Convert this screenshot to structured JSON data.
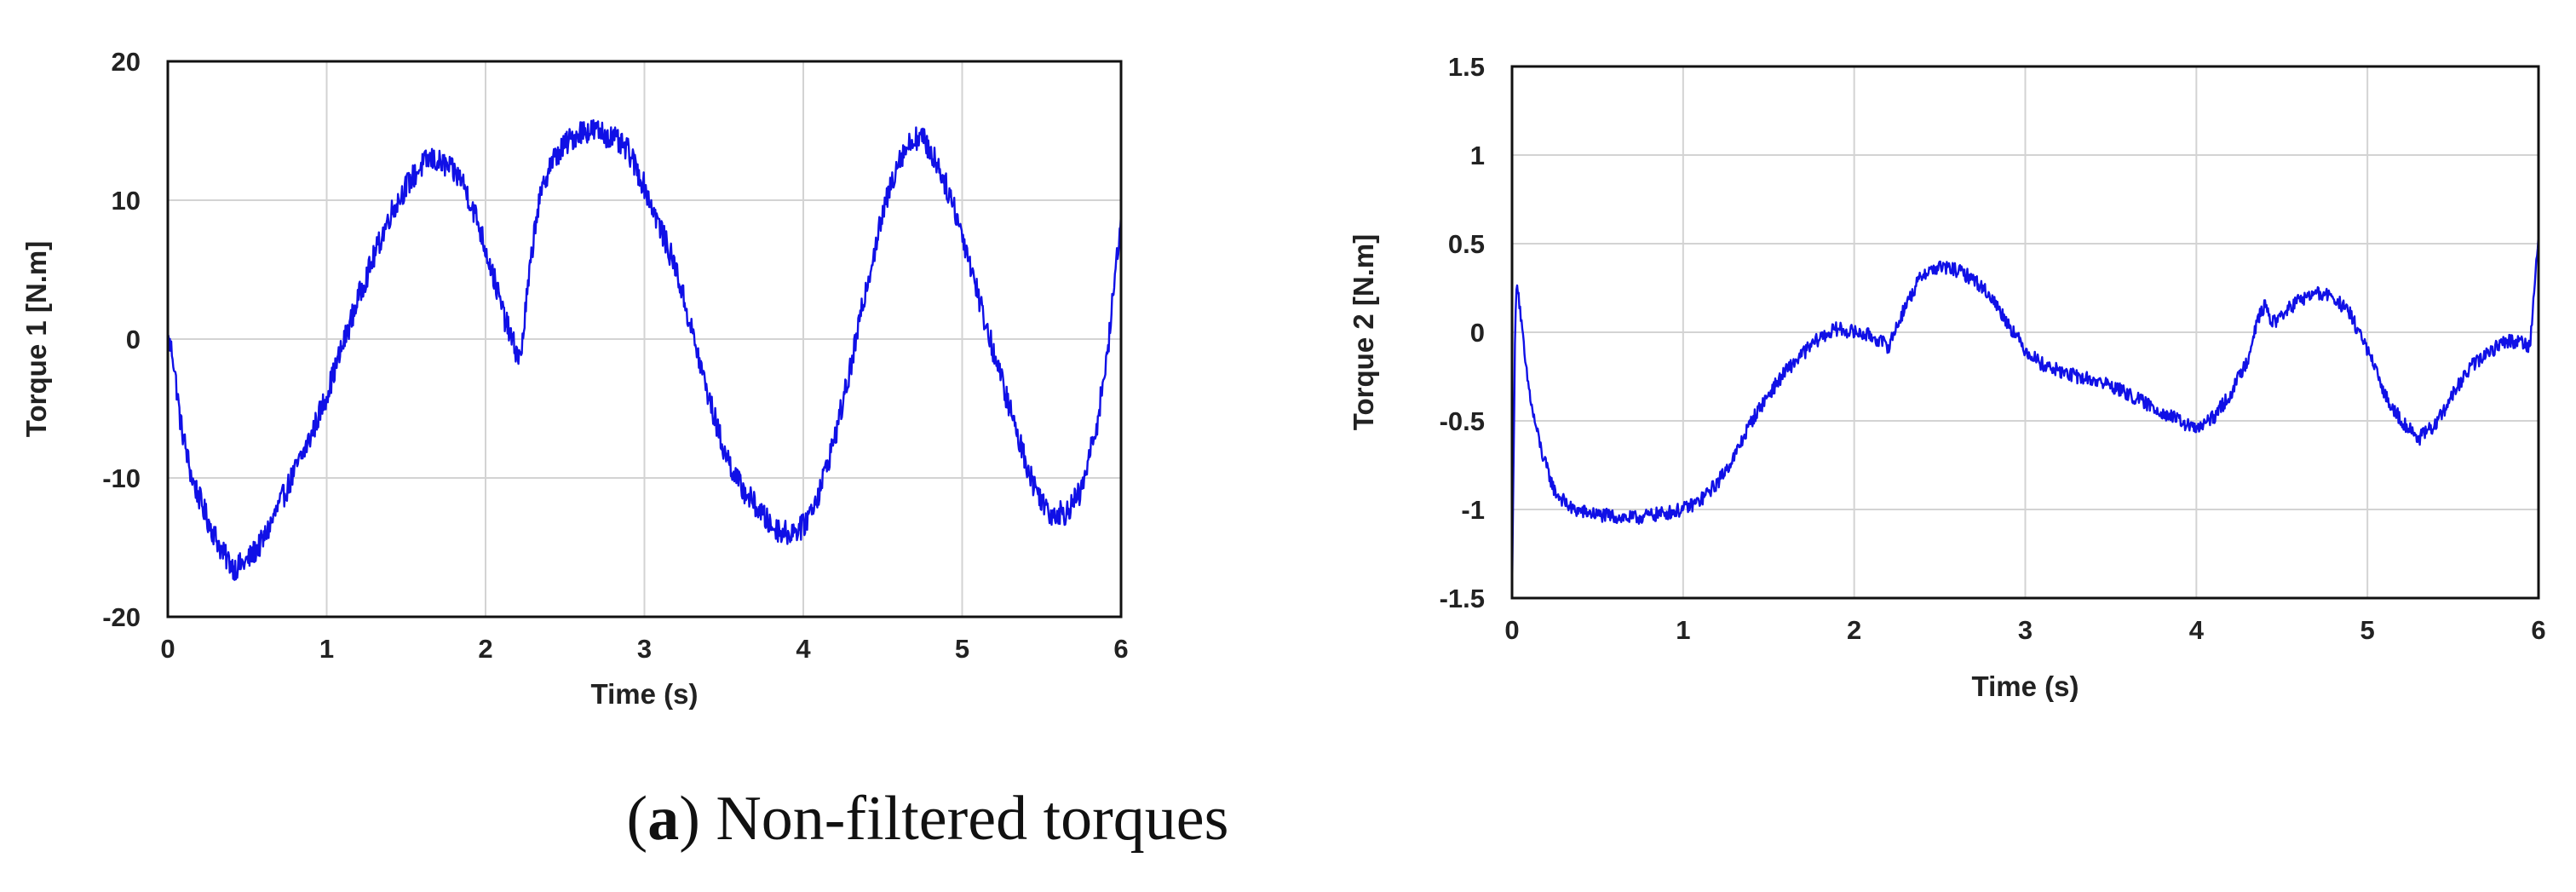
{
  "caption": {
    "open_paren": "(",
    "letter": "a",
    "rest": ") Non-filtered torques"
  },
  "colors": {
    "series": "#1010e6"
  },
  "chart_data": [
    {
      "type": "line",
      "title": "",
      "xlabel": "Time (s)",
      "ylabel": "Torque 1 [N.m]",
      "xlim": [
        0,
        6
      ],
      "ylim": [
        -20,
        20
      ],
      "xticks": [
        "0",
        "1",
        "2",
        "3",
        "4",
        "5",
        "6"
      ],
      "yticks": [
        "-20",
        "-10",
        "0",
        "10",
        "20"
      ],
      "grid": true,
      "noise_amplitude": 0.9,
      "series": [
        {
          "x": [
            0,
            0.03,
            0.08,
            0.15,
            0.25,
            0.35,
            0.42,
            0.5,
            0.6,
            0.7,
            0.8,
            0.9,
            1.0,
            1.1,
            1.2,
            1.3,
            1.4,
            1.5,
            1.6,
            1.65,
            1.75,
            1.85,
            1.95,
            2.05,
            2.12,
            2.18,
            2.22,
            2.26,
            2.32,
            2.4,
            2.5,
            2.6,
            2.7,
            2.8,
            2.9,
            3.0,
            3.1,
            3.2,
            3.3,
            3.4,
            3.5,
            3.6,
            3.7,
            3.8,
            3.9,
            4.0,
            4.1,
            4.2,
            4.3,
            4.4,
            4.5,
            4.6,
            4.7,
            4.75,
            4.85,
            4.95,
            5.05,
            5.15,
            5.25,
            5.35,
            5.45,
            5.55,
            5.65,
            5.75,
            5.85,
            5.92,
            6.0
          ],
          "y": [
            0,
            -1,
            -6,
            -10,
            -13,
            -15.5,
            -16.5,
            -16,
            -14.5,
            -12,
            -9.5,
            -7,
            -4,
            -0.5,
            3,
            6,
            9,
            11,
            12.5,
            13,
            12.5,
            11.5,
            8.5,
            4.5,
            1.5,
            -0.5,
            -1.5,
            3,
            9,
            12.5,
            14,
            15,
            15,
            14.5,
            13.5,
            11,
            8,
            5,
            0.5,
            -4,
            -8,
            -10.5,
            -12,
            -13.5,
            -14,
            -13.5,
            -11,
            -7,
            -2,
            4,
            9,
            13,
            14.5,
            14.5,
            12.5,
            9.5,
            5.5,
            1,
            -3,
            -7,
            -10.5,
            -12.5,
            -12.5,
            -11,
            -6,
            -0.5,
            9
          ]
        }
      ]
    },
    {
      "type": "line",
      "title": "",
      "xlabel": "Time (s)",
      "ylabel": "Torque 2 [N.m]",
      "xlim": [
        0,
        6
      ],
      "ylim": [
        -1.5,
        1.5
      ],
      "xticks": [
        "0",
        "1",
        "2",
        "3",
        "4",
        "5",
        "6"
      ],
      "yticks": [
        "-1.5",
        "-1",
        "-0.5",
        "0",
        "0.5",
        "1",
        "1.5"
      ],
      "grid": true,
      "noise_amplitude": 0.04,
      "series": [
        {
          "x": [
            0,
            0.01,
            0.02,
            0.03,
            0.05,
            0.08,
            0.12,
            0.18,
            0.25,
            0.35,
            0.5,
            0.7,
            0.9,
            1.0,
            1.1,
            1.2,
            1.3,
            1.4,
            1.5,
            1.6,
            1.7,
            1.8,
            1.9,
            2.0,
            2.1,
            2.2,
            2.3,
            2.4,
            2.5,
            2.6,
            2.7,
            2.8,
            2.9,
            3.0,
            3.1,
            3.2,
            3.3,
            3.4,
            3.5,
            3.6,
            3.7,
            3.8,
            3.9,
            4.0,
            4.1,
            4.2,
            4.3,
            4.35,
            4.4,
            4.45,
            4.5,
            4.6,
            4.7,
            4.8,
            4.9,
            5.0,
            5.1,
            5.2,
            5.3,
            5.4,
            5.5,
            5.6,
            5.7,
            5.8,
            5.9,
            5.95,
            6.0
          ],
          "y": [
            -1.5,
            -0.6,
            0.1,
            0.3,
            0.1,
            -0.2,
            -0.45,
            -0.7,
            -0.9,
            -1.0,
            -1.03,
            -1.05,
            -1.02,
            -1.0,
            -0.95,
            -0.85,
            -0.7,
            -0.5,
            -0.35,
            -0.22,
            -0.12,
            -0.03,
            0.02,
            0.0,
            -0.02,
            -0.08,
            0.15,
            0.33,
            0.37,
            0.35,
            0.3,
            0.2,
            0.05,
            -0.1,
            -0.18,
            -0.22,
            -0.25,
            -0.27,
            -0.3,
            -0.35,
            -0.4,
            -0.45,
            -0.5,
            -0.55,
            -0.48,
            -0.35,
            -0.15,
            0.05,
            0.15,
            0.05,
            0.1,
            0.18,
            0.22,
            0.2,
            0.1,
            -0.1,
            -0.35,
            -0.5,
            -0.6,
            -0.52,
            -0.35,
            -0.2,
            -0.12,
            -0.05,
            -0.05,
            -0.08,
            0.55
          ]
        }
      ]
    }
  ]
}
